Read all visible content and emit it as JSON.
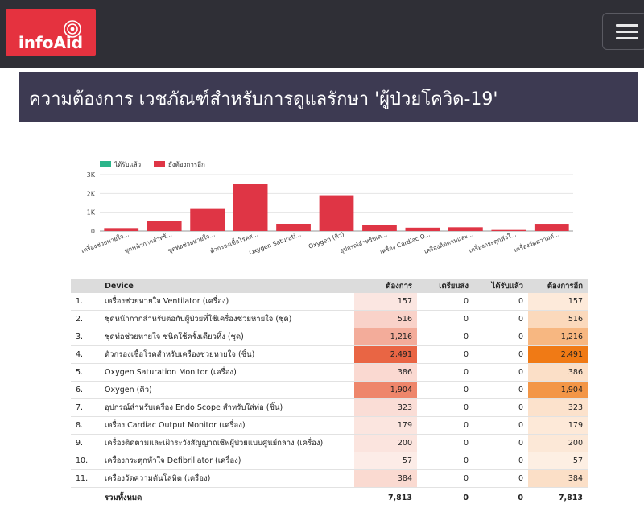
{
  "header": {
    "logo_text": "infoAid",
    "menu_icon": "hamburger-icon"
  },
  "page_title": "ความต้องการ เวชภัณฑ์สำหรับการดูแลรักษา 'ผู้ป่วยโควิด-19'",
  "colors": {
    "received": "#2bb58a",
    "still_needed": "#df3545",
    "heat_needed": "#e85d3a",
    "heat_remaining": "#f07a15"
  },
  "chart_data": {
    "type": "bar",
    "categories": [
      "เครื่องช่วยหายใจ...",
      "ชุดหน้ากากสำหรั...",
      "ชุดท่อช่วยหายใจ...",
      "ตัวกรองเชื้อโรคส...",
      "Oxygen Saturati...",
      "Oxygen (คิว)",
      "อุปกรณ์สำหรับเค...",
      "เครื่อง Cardiac O...",
      "เครื่องติดตามและ...",
      "เครื่องกระตุกหัวใ...",
      "เครื่องวัดความดั..."
    ],
    "series": [
      {
        "name": "ได้รับแล้ว",
        "values": [
          0,
          0,
          0,
          0,
          0,
          0,
          0,
          0,
          0,
          0,
          0
        ]
      },
      {
        "name": "ยังต้องการอีก",
        "values": [
          157,
          516,
          1216,
          2491,
          386,
          1904,
          323,
          179,
          200,
          57,
          384
        ]
      }
    ],
    "ytick_labels": [
      "0",
      "1K",
      "2K",
      "3K"
    ],
    "ylim": [
      0,
      3000
    ],
    "grid": true,
    "legend_position": "top-left"
  },
  "table": {
    "headers": [
      "Device",
      "ต้องการ",
      "เตรียมส่ง",
      "ได้รับแล้ว",
      "ต้องการอีก"
    ],
    "rows": [
      {
        "idx": "1.",
        "device": "เครื่องช่วยหายใจ Ventilator (เครื่อง)",
        "need": "157",
        "prepare": "0",
        "received": "0",
        "remaining": "157"
      },
      {
        "idx": "2.",
        "device": "ชุดหน้ากากสำหรับต่อกับผู้ป่วยที่ใช้เครื่องช่วยหายใจ (ชุด)",
        "need": "516",
        "prepare": "0",
        "received": "0",
        "remaining": "516"
      },
      {
        "idx": "3.",
        "device": "ชุดท่อช่วยหายใจ ชนิดใช้ครั้งเดียวทิ้ง (ชุด)",
        "need": "1,216",
        "prepare": "0",
        "received": "0",
        "remaining": "1,216"
      },
      {
        "idx": "4.",
        "device": "ตัวกรองเชื้อโรคสำหรับเครื่องช่วยหายใจ (ชิ้น)",
        "need": "2,491",
        "prepare": "0",
        "received": "0",
        "remaining": "2,491"
      },
      {
        "idx": "5.",
        "device": "Oxygen Saturation Monitor (เครื่อง)",
        "need": "386",
        "prepare": "0",
        "received": "0",
        "remaining": "386"
      },
      {
        "idx": "6.",
        "device": "Oxygen (คิว)",
        "need": "1,904",
        "prepare": "0",
        "received": "0",
        "remaining": "1,904"
      },
      {
        "idx": "7.",
        "device": "อุปกรณ์สำหรับเครื่อง Endo Scope สำหรับใส่ท่อ (ชิ้น)",
        "need": "323",
        "prepare": "0",
        "received": "0",
        "remaining": "323"
      },
      {
        "idx": "8.",
        "device": "เครื่อง Cardiac Output Monitor (เครื่อง)",
        "need": "179",
        "prepare": "0",
        "received": "0",
        "remaining": "179"
      },
      {
        "idx": "9.",
        "device": "เครื่องติดตามและเฝ้าระวังสัญญาณชีพผู้ป่วยแบบศูนย์กลาง (เครื่อง)",
        "need": "200",
        "prepare": "0",
        "received": "0",
        "remaining": "200"
      },
      {
        "idx": "10.",
        "device": "เครื่องกระตุกหัวใจ Defibrillator (เครื่อง)",
        "need": "57",
        "prepare": "0",
        "received": "0",
        "remaining": "57"
      },
      {
        "idx": "11.",
        "device": "เครื่องวัดความดันโลหิต (เครื่อง)",
        "need": "384",
        "prepare": "0",
        "received": "0",
        "remaining": "384"
      }
    ],
    "total": {
      "label": "รวมทั้งหมด",
      "need": "7,813",
      "prepare": "0",
      "received": "0",
      "remaining": "7,813"
    }
  }
}
